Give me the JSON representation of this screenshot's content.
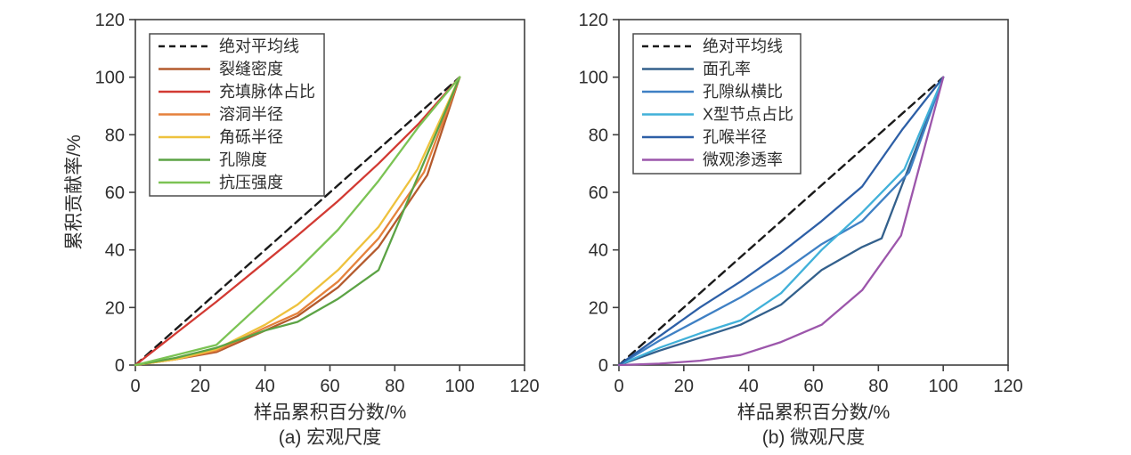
{
  "figure": {
    "background": "#ffffff",
    "axis_color": "#3f3f3f",
    "text_color": "#2e2e2e"
  },
  "chart_data": [
    {
      "type": "line",
      "caption": "(a) 宏观尺度",
      "xlabel": "样品累积百分数/%",
      "ylabel": "累积贡献率/%",
      "xlim": [
        0,
        120
      ],
      "ylim": [
        0,
        120
      ],
      "xticks": [
        0,
        20,
        40,
        60,
        80,
        100,
        120
      ],
      "yticks": [
        0,
        20,
        40,
        60,
        80,
        100,
        120
      ],
      "grid": false,
      "legend_position": "top-left",
      "series": [
        {
          "name": "绝对平均线",
          "color": "#1a1a1a",
          "dash": true,
          "points": [
            [
              0,
              0
            ],
            [
              100,
              100
            ]
          ]
        },
        {
          "name": "裂缝密度",
          "color": "#b45a2d",
          "dash": false,
          "points": [
            [
              0,
              0
            ],
            [
              12.5,
              2
            ],
            [
              25,
              4.5
            ],
            [
              40,
              12
            ],
            [
              50,
              17
            ],
            [
              62.5,
              27
            ],
            [
              75,
              41
            ],
            [
              90,
              66
            ],
            [
              100,
              100
            ]
          ]
        },
        {
          "name": "充填脉体占比",
          "color": "#d23a33",
          "dash": false,
          "points": [
            [
              0,
              0
            ],
            [
              12.5,
              11
            ],
            [
              25,
              22
            ],
            [
              37.5,
              33.5
            ],
            [
              50,
              45
            ],
            [
              62.5,
              57
            ],
            [
              75,
              70
            ],
            [
              87.5,
              84
            ],
            [
              100,
              100
            ]
          ]
        },
        {
          "name": "溶洞半径",
          "color": "#e5813c",
          "dash": false,
          "points": [
            [
              0,
              0
            ],
            [
              12.5,
              2
            ],
            [
              25,
              5
            ],
            [
              40,
              13
            ],
            [
              50,
              18
            ],
            [
              62.5,
              29
            ],
            [
              75,
              44
            ],
            [
              89,
              67
            ],
            [
              100,
              100
            ]
          ]
        },
        {
          "name": "角砾半径",
          "color": "#eec23e",
          "dash": false,
          "points": [
            [
              0,
              0
            ],
            [
              12.5,
              2
            ],
            [
              25,
              5.5
            ],
            [
              40,
              14
            ],
            [
              50,
              21
            ],
            [
              62.5,
              33
            ],
            [
              75,
              48
            ],
            [
              87,
              68
            ],
            [
              100,
              100
            ]
          ]
        },
        {
          "name": "孔隙度",
          "color": "#5ca345",
          "dash": false,
          "points": [
            [
              0,
              0
            ],
            [
              12.5,
              2.5
            ],
            [
              25,
              6
            ],
            [
              40,
              12
            ],
            [
              50,
              15
            ],
            [
              62.5,
              23
            ],
            [
              75,
              33
            ],
            [
              100,
              100
            ]
          ]
        },
        {
          "name": "抗压强度",
          "color": "#7bc354",
          "dash": false,
          "points": [
            [
              0,
              0
            ],
            [
              12.5,
              3.5
            ],
            [
              25,
              7
            ],
            [
              37.5,
              20
            ],
            [
              50,
              33
            ],
            [
              62.5,
              47
            ],
            [
              75,
              64
            ],
            [
              87.5,
              83
            ],
            [
              100,
              100
            ]
          ]
        }
      ]
    },
    {
      "type": "line",
      "caption": "(b) 微观尺度",
      "xlabel": "样品累积百分数/%",
      "ylabel": "累积贡献率/%",
      "xlim": [
        0,
        120
      ],
      "ylim": [
        0,
        120
      ],
      "xticks": [
        0,
        20,
        40,
        60,
        80,
        100,
        120
      ],
      "yticks": [
        0,
        20,
        40,
        60,
        80,
        100,
        120
      ],
      "grid": false,
      "legend_position": "top-left",
      "series": [
        {
          "name": "绝对平均线",
          "color": "#1a1a1a",
          "dash": true,
          "points": [
            [
              0,
              0
            ],
            [
              100,
              100
            ]
          ]
        },
        {
          "name": "面孔率",
          "color": "#33608c",
          "dash": false,
          "points": [
            [
              0,
              0
            ],
            [
              12.5,
              5
            ],
            [
              25,
              9.5
            ],
            [
              37.5,
              14
            ],
            [
              50,
              21
            ],
            [
              62.5,
              33
            ],
            [
              75,
              41
            ],
            [
              81,
              44
            ],
            [
              100,
              100
            ]
          ]
        },
        {
          "name": "孔隙纵横比",
          "color": "#3f80c4",
          "dash": false,
          "points": [
            [
              0,
              0
            ],
            [
              12.5,
              8.5
            ],
            [
              25,
              16
            ],
            [
              37.5,
              23.5
            ],
            [
              50,
              32
            ],
            [
              62.5,
              42
            ],
            [
              75,
              50
            ],
            [
              89.5,
              67
            ],
            [
              100,
              100
            ]
          ]
        },
        {
          "name": "X型节点占比",
          "color": "#41b1d9",
          "dash": false,
          "points": [
            [
              0,
              0
            ],
            [
              12.5,
              6
            ],
            [
              25,
              11
            ],
            [
              37.5,
              15.5
            ],
            [
              50,
              25
            ],
            [
              62.5,
              40
            ],
            [
              75,
              53
            ],
            [
              88,
              68
            ],
            [
              100,
              100
            ]
          ]
        },
        {
          "name": "孔喉半径",
          "color": "#2d5fa6",
          "dash": false,
          "points": [
            [
              0,
              0
            ],
            [
              12.5,
              10
            ],
            [
              25,
              20
            ],
            [
              37.5,
              29
            ],
            [
              50,
              39
            ],
            [
              62.5,
              50
            ],
            [
              75,
              62
            ],
            [
              87.5,
              82
            ],
            [
              100,
              100
            ]
          ]
        },
        {
          "name": "微观渗透率",
          "color": "#9c56ab",
          "dash": false,
          "points": [
            [
              0,
              0
            ],
            [
              12.5,
              0.5
            ],
            [
              25,
              1.5
            ],
            [
              37.5,
              3.5
            ],
            [
              50,
              8
            ],
            [
              62.5,
              14
            ],
            [
              75,
              26
            ],
            [
              87,
              45
            ],
            [
              100,
              100
            ]
          ]
        }
      ]
    }
  ]
}
